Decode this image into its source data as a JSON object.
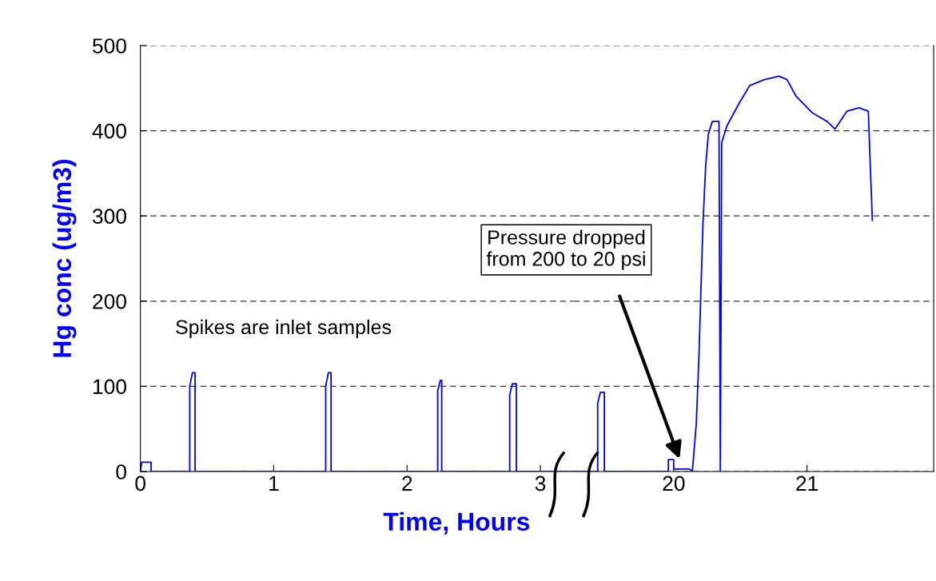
{
  "chart_data": [
    {
      "type": "line",
      "ylabel": "Hg conc (ug/m3)",
      "xlabel": "Time, Hours",
      "xlim": [
        0,
        3.25
      ],
      "xticks": [
        0,
        1,
        2,
        3
      ],
      "ylim": [
        0,
        500
      ],
      "yticks": [
        0,
        100,
        200,
        300,
        400,
        500
      ],
      "grid": "y",
      "line_style": "solid",
      "annotations": [
        "Spikes are inlet samples"
      ],
      "series": [
        {
          "color": "#0000ff",
          "x": [
            0,
            0.01,
            0.08,
            0.08,
            0.37,
            0.37,
            0.39,
            0.41,
            0.41,
            1.39,
            1.39,
            1.41,
            1.43,
            1.43,
            2.23,
            2.23,
            2.25,
            2.26,
            2.26,
            2.77,
            2.77,
            2.79,
            2.82,
            2.82,
            3.25
          ],
          "values": [
            0,
            11,
            11,
            0,
            0,
            100,
            116,
            116,
            0,
            0,
            100,
            116,
            116,
            0,
            0,
            95,
            107,
            107,
            0,
            0,
            90,
            103,
            103,
            0,
            0
          ]
        }
      ]
    },
    {
      "type": "line",
      "xlim": [
        19.25,
        21.95
      ],
      "xticks": [
        20,
        21
      ],
      "ylim": [
        0,
        500
      ],
      "yticks": [
        0,
        100,
        200,
        300,
        400,
        500
      ],
      "grid": "y",
      "tick_labels": "x",
      "line_style": "solid",
      "annotations": [
        "Pressure dropped\nfrom 200 to 20 psi"
      ],
      "series": [
        {
          "color": "#0000ff",
          "x": [
            19.25,
            19.43,
            19.43,
            19.45,
            19.48,
            19.48,
            19.96,
            19.96,
            20.0,
            20.0,
            20.12,
            20.14,
            20.17,
            20.19,
            20.2,
            20.22,
            20.24,
            20.26,
            20.29,
            20.34,
            20.35,
            20.36,
            20.4,
            20.49,
            20.57,
            20.68,
            20.79,
            20.85,
            20.92,
            21.04,
            21.15,
            21.21,
            21.3,
            21.39,
            21.46,
            21.47,
            21.49
          ],
          "values": [
            0,
            0,
            80,
            93,
            93,
            0,
            0,
            14,
            14,
            3,
            3,
            0,
            57,
            138,
            191,
            292,
            359,
            396,
            411,
            411,
            0,
            386,
            406,
            432,
            453,
            460,
            464,
            460,
            440,
            421,
            411,
            402,
            423,
            427,
            423,
            379,
            295
          ]
        }
      ]
    }
  ]
}
